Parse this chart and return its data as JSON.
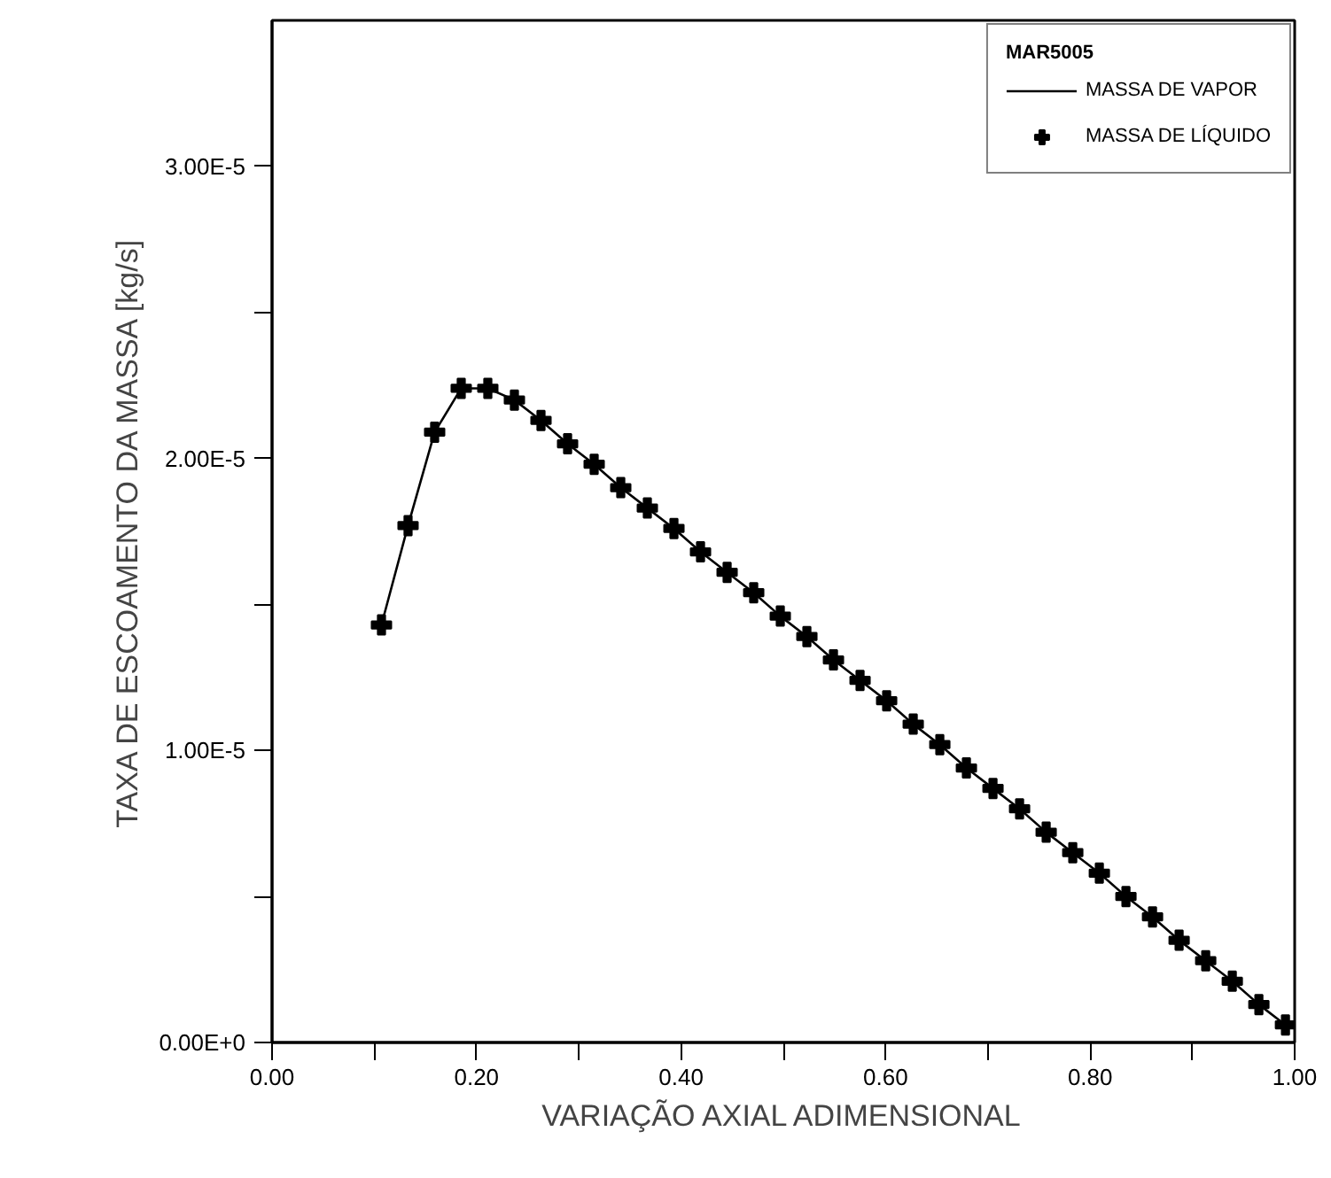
{
  "chart_data": {
    "type": "line",
    "xlabel": "VARIAÇÃO AXIAL ADIMENSIONAL",
    "ylabel": "TAXA DE ESCOAMENTO DA MASSA [kg/s]",
    "legend_title": "MAR5005",
    "legend": "top right",
    "grid": false,
    "xlim": [
      0,
      1
    ],
    "ylim": [
      0,
      3.5e-05
    ],
    "xticks": [
      {
        "value": 0,
        "label": "0.00"
      },
      {
        "value": 0.1,
        "label": null
      },
      {
        "value": 0.2,
        "label": "0.20"
      },
      {
        "value": 0.3,
        "label": null
      },
      {
        "value": 0.4,
        "label": "0.40"
      },
      {
        "value": 0.5,
        "label": null
      },
      {
        "value": 0.6,
        "label": "0.60"
      },
      {
        "value": 0.7,
        "label": null
      },
      {
        "value": 0.8,
        "label": "0.80"
      },
      {
        "value": 0.9,
        "label": null
      },
      {
        "value": 1,
        "label": "1.00"
      }
    ],
    "yticks": [
      {
        "value": 0,
        "label": "0.00E+0"
      },
      {
        "value": 5e-06,
        "label": null
      },
      {
        "value": 1e-05,
        "label": "1.00E-5"
      },
      {
        "value": 1.5e-05,
        "label": null
      },
      {
        "value": 2e-05,
        "label": "2.00E-5"
      },
      {
        "value": 2.5e-05,
        "label": null
      },
      {
        "value": 3e-05,
        "label": "3.00E-5"
      }
    ],
    "x": [
      0.107,
      0.133,
      0.159,
      0.185,
      0.211,
      0.237,
      0.263,
      0.289,
      0.315,
      0.341,
      0.367,
      0.393,
      0.419,
      0.445,
      0.471,
      0.497,
      0.523,
      0.549,
      0.575,
      0.601,
      0.627,
      0.653,
      0.679,
      0.705,
      0.731,
      0.757,
      0.783,
      0.809,
      0.835,
      0.861,
      0.887,
      0.913,
      0.939,
      0.965,
      0.991
    ],
    "series": [
      {
        "name": "MASSA DE VAPOR",
        "marker": "none",
        "line_style": "solid",
        "color": "#000000",
        "values": [
          1.43e-05,
          1.77e-05,
          2.09e-05,
          2.24e-05,
          2.24e-05,
          2.2e-05,
          2.13e-05,
          2.05e-05,
          1.98e-05,
          1.9e-05,
          1.83e-05,
          1.76e-05,
          1.68e-05,
          1.61e-05,
          1.54e-05,
          1.46e-05,
          1.39e-05,
          1.31e-05,
          1.24e-05,
          1.17e-05,
          1.09e-05,
          1.02e-05,
          9.4e-06,
          8.7e-06,
          8e-06,
          7.2e-06,
          6.5e-06,
          5.8e-06,
          5e-06,
          4.3e-06,
          3.5e-06,
          2.8e-06,
          2.1e-06,
          1.3e-06,
          6e-07
        ]
      },
      {
        "name": "MASSA DE LÍQUIDO",
        "type": "scatter",
        "marker": "cross",
        "color": "#000000",
        "values": [
          1.43e-05,
          1.77e-05,
          2.09e-05,
          2.24e-05,
          2.24e-05,
          2.2e-05,
          2.13e-05,
          2.05e-05,
          1.98e-05,
          1.9e-05,
          1.83e-05,
          1.76e-05,
          1.68e-05,
          1.61e-05,
          1.54e-05,
          1.46e-05,
          1.39e-05,
          1.31e-05,
          1.24e-05,
          1.17e-05,
          1.09e-05,
          1.02e-05,
          9.4e-06,
          8.7e-06,
          8e-06,
          7.2e-06,
          6.5e-06,
          5.8e-06,
          5e-06,
          4.3e-06,
          3.5e-06,
          2.8e-06,
          2.1e-06,
          1.3e-06,
          6e-07
        ]
      }
    ]
  }
}
